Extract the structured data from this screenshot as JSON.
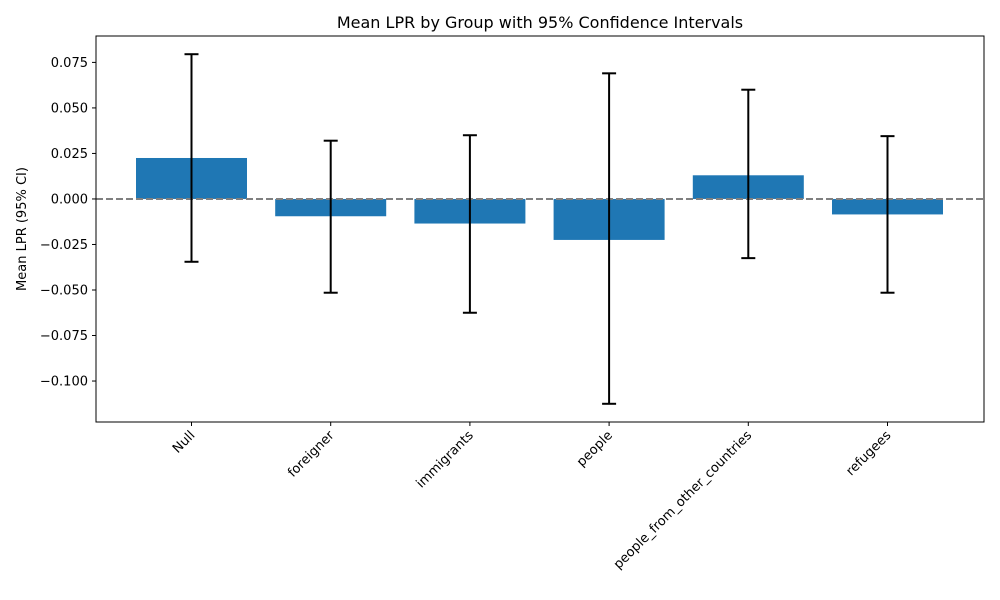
{
  "chart_data": {
    "type": "bar",
    "title": "Mean LPR by Group with 95% Confidence Intervals",
    "xlabel": "",
    "ylabel": "Mean LPR (95% CI)",
    "categories": [
      "Null",
      "foreigner",
      "immigrants",
      "people",
      "people_from_other_countries",
      "refugees"
    ],
    "values": [
      0.0225,
      -0.0095,
      -0.0135,
      -0.0225,
      0.013,
      -0.0085
    ],
    "ci_lower": [
      -0.0345,
      -0.0515,
      -0.0625,
      -0.1125,
      -0.0325,
      -0.0515
    ],
    "ci_upper": [
      0.0795,
      0.032,
      0.035,
      0.069,
      0.06,
      0.0345
    ],
    "ylim": [
      -0.1225,
      0.0895
    ],
    "yticks": [
      -0.1,
      -0.075,
      -0.05,
      -0.025,
      0.0,
      0.025,
      0.05,
      0.075
    ],
    "ytick_labels": [
      "−0.100",
      "−0.075",
      "−0.050",
      "−0.025",
      "0.000",
      "0.025",
      "0.050",
      "0.075"
    ],
    "reference_line": 0.0,
    "grid": false,
    "bar_color": "#1f77b4",
    "errorbar_color": "#000000",
    "reference_line_color": "#808080"
  }
}
